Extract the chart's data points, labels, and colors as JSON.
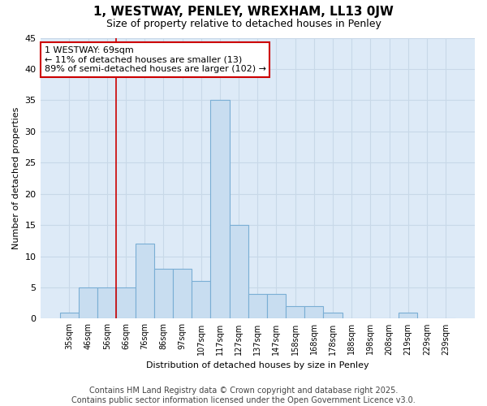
{
  "title": "1, WESTWAY, PENLEY, WREXHAM, LL13 0JW",
  "subtitle": "Size of property relative to detached houses in Penley",
  "xlabel": "Distribution of detached houses by size in Penley",
  "ylabel": "Number of detached properties",
  "categories": [
    "35sqm",
    "46sqm",
    "56sqm",
    "66sqm",
    "76sqm",
    "86sqm",
    "97sqm",
    "107sqm",
    "117sqm",
    "127sqm",
    "137sqm",
    "147sqm",
    "158sqm",
    "168sqm",
    "178sqm",
    "188sqm",
    "198sqm",
    "208sqm",
    "219sqm",
    "229sqm",
    "239sqm"
  ],
  "values": [
    1,
    5,
    5,
    5,
    12,
    8,
    8,
    6,
    35,
    15,
    4,
    4,
    2,
    2,
    1,
    0,
    0,
    0,
    1,
    0,
    0
  ],
  "bar_color": "#c8ddf0",
  "bar_edge_color": "#7aaed4",
  "grid_color": "#c8d8e8",
  "plot_bg_color": "#ddeaf7",
  "fig_bg_color": "#ffffff",
  "vline_index": 3,
  "vline_color": "#cc0000",
  "annotation_text": "1 WESTWAY: 69sqm\n← 11% of detached houses are smaller (13)\n89% of semi-detached houses are larger (102) →",
  "annotation_box_color": "white",
  "annotation_box_edge": "#cc0000",
  "footer1": "Contains HM Land Registry data © Crown copyright and database right 2025.",
  "footer2": "Contains public sector information licensed under the Open Government Licence v3.0.",
  "ylim": [
    0,
    45
  ],
  "yticks": [
    0,
    5,
    10,
    15,
    20,
    25,
    30,
    35,
    40,
    45
  ],
  "title_fontsize": 11,
  "subtitle_fontsize": 9,
  "axis_label_fontsize": 8,
  "tick_fontsize": 7,
  "annotation_fontsize": 8,
  "footer_fontsize": 7
}
